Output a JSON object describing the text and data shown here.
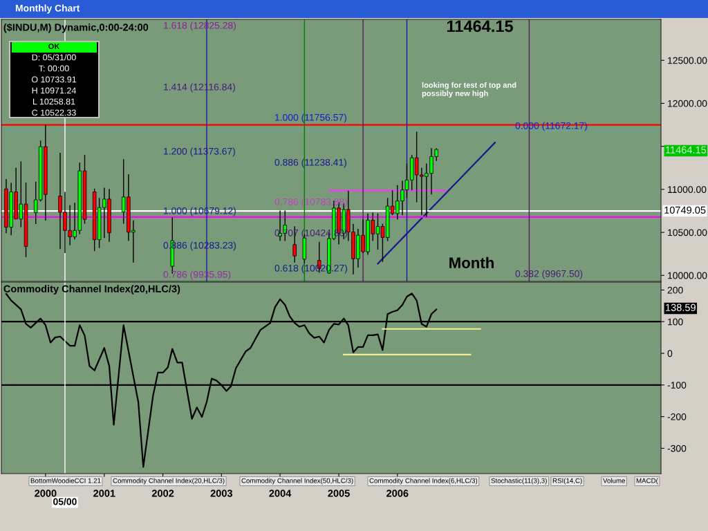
{
  "chart_data": [
    {
      "type": "candlestick",
      "title": "($INDU,M) Dynamic,0:00-24:00",
      "subtitle": "Monthly Chart",
      "x": [
        "1999-05",
        "1999-06",
        "1999-07",
        "1999-08",
        "1999-09",
        "1999-11",
        "1999-12",
        "2000-01",
        "2000-04",
        "2000-05",
        "2000-06",
        "2000-07",
        "2000-08",
        "2000-09",
        "2000-11",
        "2000-12",
        "2001-01",
        "2001-02",
        "2001-05",
        "2001-06",
        "2001-07",
        "2002-03",
        "2004-01",
        "2004-02",
        "2004-04",
        "2004-06",
        "2004-09",
        "2004-11",
        "2004-12",
        "2005-01",
        "2005-02",
        "2005-03",
        "2005-04",
        "2005-05",
        "2005-06",
        "2005-07",
        "2005-08",
        "2005-09",
        "2005-10",
        "2005-11",
        "2005-12",
        "2006-01",
        "2006-02",
        "2006-03",
        "2006-04",
        "2006-05",
        "2006-06",
        "2006-07",
        "2006-08",
        "2006-09"
      ],
      "ohlc": [
        [
          11005,
          11120,
          10490,
          10560
        ],
        [
          10560,
          11076,
          10466,
          10971
        ],
        [
          10971,
          11252,
          10655,
          10655
        ],
        [
          10655,
          11326,
          10560,
          10829
        ],
        [
          10829,
          11079,
          10213,
          10337
        ],
        [
          10729,
          11089,
          10597,
          10878
        ],
        [
          10878,
          11568,
          10860,
          11497
        ],
        [
          11497,
          11750,
          10638,
          10941
        ],
        [
          10922,
          11425,
          10306,
          10734
        ],
        [
          10733.91,
          10971.24,
          10258.81,
          10522.33
        ],
        [
          10522,
          10816,
          10349,
          10448
        ],
        [
          10448,
          10844,
          10418,
          10522
        ],
        [
          10522,
          11310,
          10478,
          11215
        ],
        [
          11215,
          11401,
          10600,
          10651
        ],
        [
          10971,
          11009,
          10283,
          10415
        ],
        [
          10415,
          10899,
          10319,
          10788
        ],
        [
          10788,
          11020,
          10435,
          10887
        ],
        [
          10887,
          11005,
          10390,
          10495
        ],
        [
          10735,
          11350,
          10600,
          10912
        ],
        [
          10912,
          11175,
          10400,
          10502
        ],
        [
          10502,
          10640,
          10150,
          10523
        ],
        [
          10106,
          10673,
          10020,
          10404
        ],
        [
          10454,
          10754,
          10400,
          10488
        ],
        [
          10488,
          10754,
          10400,
          10584
        ],
        [
          10358,
          10570,
          10150,
          10226
        ],
        [
          10188,
          10480,
          10140,
          10435
        ],
        [
          10174,
          10390,
          10030,
          10080
        ],
        [
          10027,
          10500,
          10020,
          10428
        ],
        [
          10428,
          10868,
          10410,
          10783
        ],
        [
          10783,
          10850,
          10360,
          10490
        ],
        [
          10490,
          10840,
          10420,
          10766
        ],
        [
          10766,
          10984,
          10400,
          10504
        ],
        [
          10504,
          10600,
          10013,
          10193
        ],
        [
          10193,
          10540,
          10090,
          10467
        ],
        [
          10467,
          10650,
          10260,
          10275
        ],
        [
          10275,
          10720,
          10240,
          10641
        ],
        [
          10641,
          10730,
          10400,
          10482
        ],
        [
          10482,
          10720,
          10300,
          10569
        ],
        [
          10569,
          10600,
          10156,
          10440
        ],
        [
          10440,
          10900,
          10400,
          10806
        ],
        [
          10806,
          10990,
          10700,
          10718
        ],
        [
          10718,
          11050,
          10650,
          10865
        ],
        [
          10865,
          11100,
          10700,
          10993
        ],
        [
          10993,
          11300,
          10900,
          11109
        ],
        [
          11109,
          11400,
          10990,
          11367
        ],
        [
          11367,
          11670,
          10850,
          11168
        ],
        [
          11168,
          11250,
          10700,
          11150
        ],
        [
          11150,
          11300,
          10680,
          11186
        ],
        [
          11186,
          11480,
          10940,
          11381
        ],
        [
          11381,
          11480,
          11330,
          11464.15
        ]
      ],
      "series": [
        {
          "type": "line",
          "color": "#ff33ff",
          "x": [
            "2004-11",
            "2006-11"
          ],
          "values": [
            10985,
            10985
          ]
        },
        {
          "type": "line",
          "color": "#1a1a8c",
          "x": [
            "2005-09",
            "2007-09"
          ],
          "values": [
            10136,
            11544
          ]
        }
      ],
      "xlim": [
        "1999-04",
        "2010-07"
      ],
      "ylim": [
        9930,
        12976
      ],
      "yticks": [
        {
          "value": 10000,
          "label": "10000.00"
        },
        {
          "value": 10500,
          "label": "10500.00"
        },
        {
          "value": 11000,
          "label": "11000.00"
        },
        {
          "value": 11500,
          "label": null
        },
        {
          "value": 12000,
          "label": "12000.00"
        },
        {
          "value": 12500,
          "label": "12500.00"
        }
      ],
      "tick_labels": "y",
      "ref_lines": [
        {
          "axis": "y",
          "value": 11750,
          "color": "#ff0000"
        },
        {
          "axis": "y",
          "value": 11680,
          "color": "#5fa8a8"
        },
        {
          "axis": "y",
          "value": 10749.05,
          "label": "10749.05",
          "color": "#ffffff"
        },
        {
          "axis": "y",
          "value": 10679,
          "color": "#ff00ff"
        },
        {
          "axis": "x",
          "value": "2000-05",
          "color": "#ffffff"
        },
        {
          "axis": "x",
          "value": "2002-10",
          "color": "#1a1aa0"
        },
        {
          "axis": "x",
          "value": "2004-06",
          "color": "#008000"
        },
        {
          "axis": "x",
          "value": "2005-06",
          "color": "#5a1a5a"
        },
        {
          "axis": "x",
          "value": "2006-03",
          "color": "#1a1aa0"
        },
        {
          "axis": "x",
          "value": "2008-04",
          "color": "#5a1a5a"
        }
      ],
      "annotations": [
        "11464.15",
        "looking for test of top and\npossibly new high",
        "Month",
        "OK",
        "D: 05/31/00",
        "T: 00:00",
        "O 10733.91",
        "H 10971.24",
        "L 10258.81",
        "C 10522.33",
        "1.618 (12825.28)",
        "1.414 (12116.84)",
        "1.200 (11373.67)",
        "1.000 (10679.12)",
        "0.886 (10283.23)",
        "0.786 (9935.95)",
        "1.000 (11756.57)",
        "0.886 (11238.41)",
        "0.786 (10783.88)",
        "0.707 (10424.80)",
        "0.618 (10020.27)",
        "0.000 (11672.17)",
        "0.382 (9967.50)",
        "11464.15"
      ]
    },
    {
      "type": "line",
      "title": "Commodity Channel Index(20,HLC/3)",
      "series": [
        {
          "color": "#000000",
          "x": [
            "1999-05",
            "1999-06",
            "1999-08",
            "1999-09",
            "1999-10",
            "1999-12",
            "2000-01",
            "2000-02",
            "2000-03",
            "2000-04",
            "2000-06",
            "2000-07",
            "2000-08",
            "2000-09",
            "2000-10",
            "2000-11",
            "2001-01",
            "2001-02",
            "2001-03",
            "2001-05",
            "2001-08",
            "2001-09",
            "2001-11",
            "2001-12",
            "2002-01",
            "2002-02",
            "2002-03",
            "2002-04",
            "2002-05",
            "2002-07",
            "2002-08",
            "2002-09",
            "2002-10",
            "2002-11",
            "2002-12",
            "2003-01",
            "2003-02",
            "2003-03",
            "2003-04",
            "2003-06",
            "2003-07",
            "2003-08",
            "2003-09",
            "2003-11",
            "2003-12",
            "2004-01",
            "2004-02",
            "2004-03",
            "2004-04",
            "2004-05",
            "2004-06",
            "2004-07",
            "2004-08",
            "2004-09",
            "2004-10",
            "2004-11",
            "2004-12",
            "2005-01",
            "2005-02",
            "2005-03",
            "2005-04",
            "2005-05",
            "2005-06",
            "2005-07",
            "2005-08",
            "2005-09",
            "2005-10",
            "2005-11",
            "2005-12",
            "2006-01",
            "2006-02",
            "2006-03",
            "2006-04",
            "2006-05",
            "2006-06",
            "2006-07",
            "2006-08",
            "2006-09"
          ],
          "values": [
            188,
            167,
            139,
            93,
            81,
            110,
            89,
            34,
            50,
            53,
            24,
            24,
            89,
            56,
            -40,
            -54,
            17,
            -40,
            -226,
            89,
            -154,
            -359,
            -133,
            -61,
            -61,
            -44,
            14,
            -29,
            -29,
            -207,
            -171,
            -201,
            -154,
            -80,
            -86,
            -100,
            -119,
            -104,
            -47,
            6,
            17,
            46,
            74,
            96,
            146,
            171,
            153,
            117,
            96,
            84,
            89,
            63,
            49,
            53,
            34,
            74,
            93,
            91,
            110,
            89,
            3,
            20,
            20,
            57,
            57,
            60,
            10,
            124,
            131,
            136,
            153,
            179,
            189,
            167,
            93,
            84,
            124,
            138.59
          ]
        },
        {
          "color": "#f0f090",
          "x": [
            "2005-02",
            "2007-04"
          ],
          "values": [
            -4,
            -4
          ]
        },
        {
          "color": "#f0f090",
          "x": [
            "2005-10",
            "2007-06"
          ],
          "values": [
            77,
            77
          ]
        }
      ],
      "xlim": [
        "1999-04",
        "2010-07"
      ],
      "ylim": [
        -380,
        225
      ],
      "xticks": [
        {
          "value": "2000-01",
          "label": "2000"
        },
        {
          "value": "2001-01",
          "label": "2001"
        },
        {
          "value": "2002-01",
          "label": "2002"
        },
        {
          "value": "2003-01",
          "label": "2003"
        },
        {
          "value": "2004-01",
          "label": "2004"
        },
        {
          "value": "2005-01",
          "label": "2005"
        },
        {
          "value": "2006-01",
          "label": "2006"
        }
      ],
      "yticks": [
        200,
        100,
        0,
        -100,
        -200,
        -300
      ],
      "ref_lines": [
        {
          "axis": "y",
          "value": 100,
          "color": "#000000"
        },
        {
          "axis": "y",
          "value": -100,
          "color": "#000000"
        },
        {
          "axis": "x",
          "value": "2000-05",
          "label": "05/00",
          "color": "#ffffff"
        }
      ],
      "annotations": [
        "BottomWoodieCCI 1.21",
        "Commodity Channel Index(20,HLC/3)",
        "Commodity Channel Index(50,HLC/3)",
        "Commodity Channel Index(6,HLC/3)",
        "Stochastic(11(3),3)",
        "RSI(14,C)",
        "Volume",
        "MACD(",
        "138.59"
      ]
    }
  ]
}
